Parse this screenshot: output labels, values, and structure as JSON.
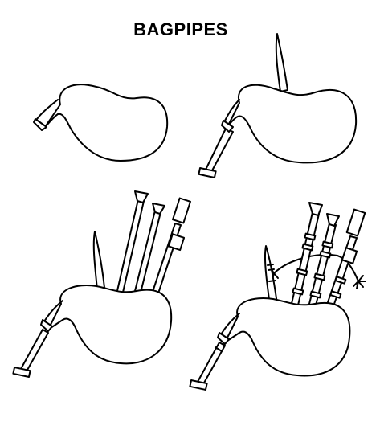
{
  "title": "BAGPIPES",
  "colors": {
    "ink": "#000000",
    "background": "#ffffff"
  },
  "steps": [
    {
      "step": 1,
      "name": "bag-outline"
    },
    {
      "step": 2,
      "name": "add-chanter-and-blowpipe"
    },
    {
      "step": 3,
      "name": "add-drones"
    },
    {
      "step": 4,
      "name": "add-details-and-cord"
    }
  ]
}
